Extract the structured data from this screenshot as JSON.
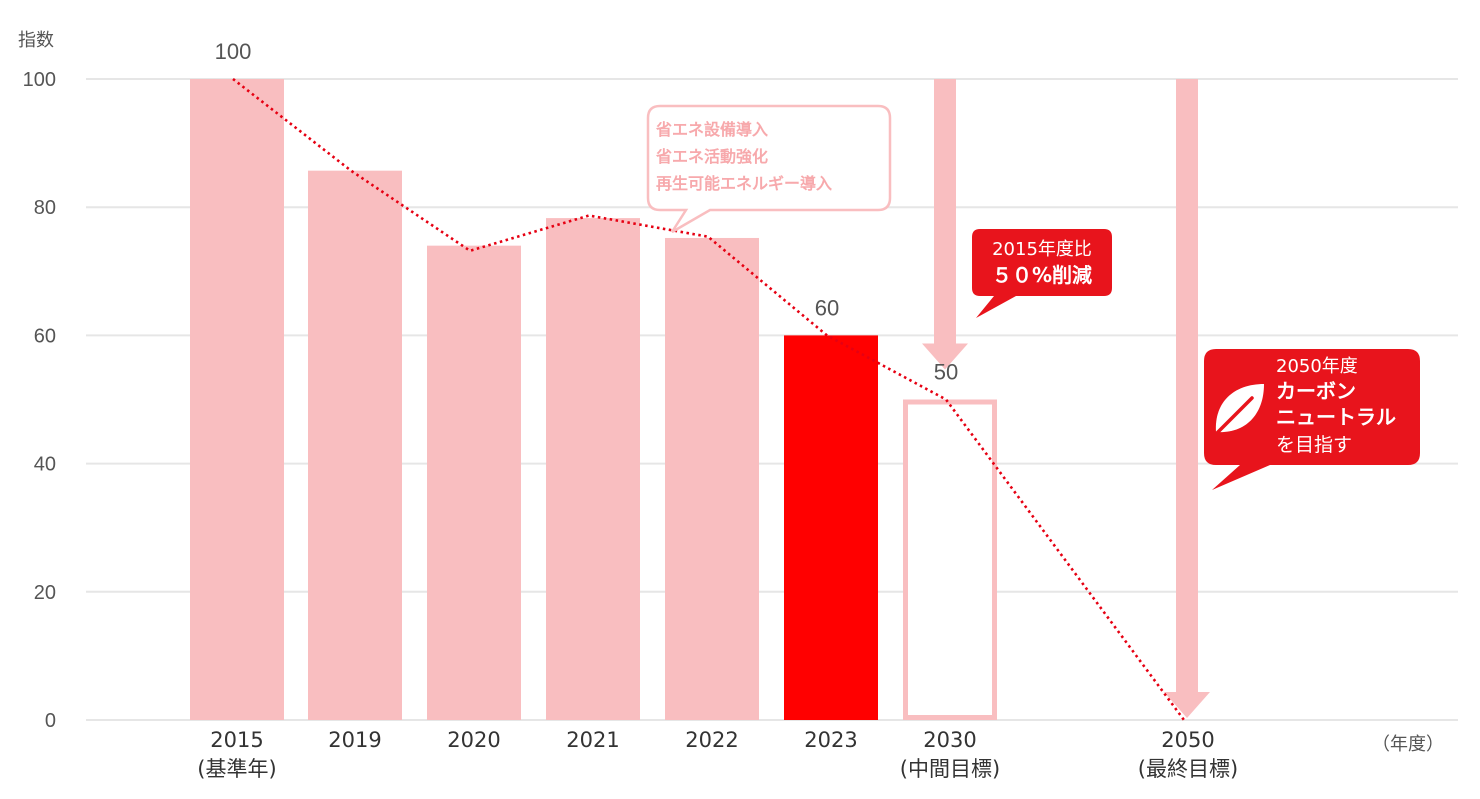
{
  "chart_data": {
    "type": "bar",
    "ylabel": "指数",
    "xlabel": "（年度）",
    "ylim": [
      0,
      100
    ],
    "yticks": [
      0,
      20,
      40,
      60,
      80,
      100
    ],
    "grid": true,
    "categories": [
      {
        "year": "2015",
        "sub": "(基準年)",
        "value": 100,
        "label": "100",
        "style": "light"
      },
      {
        "year": "2019",
        "sub": "",
        "value": 85.7,
        "label": "",
        "style": "light"
      },
      {
        "year": "2020",
        "sub": "",
        "value": 74,
        "label": "",
        "style": "light"
      },
      {
        "year": "2021",
        "sub": "",
        "value": 78.3,
        "label": "",
        "style": "light"
      },
      {
        "year": "2022",
        "sub": "",
        "value": 75.2,
        "label": "",
        "style": "light"
      },
      {
        "year": "2023",
        "sub": "",
        "value": 60,
        "label": "60",
        "style": "highlight"
      },
      {
        "year": "2030",
        "sub": "(中間目標)",
        "value": 50,
        "label": "50",
        "style": "outline"
      },
      {
        "year": "2050",
        "sub": "(最終目標)",
        "value": 0,
        "label": "",
        "style": "none"
      }
    ],
    "trend_line": [
      100,
      85.7,
      73.2,
      78.7,
      75.4,
      60,
      50,
      0
    ],
    "colors": {
      "light": "#f9bec0",
      "highlight": "#ff0000",
      "outline": "#f9bec0",
      "trend": "#e60012",
      "callout_red": "#e8141c",
      "grid": "#e6e6e6"
    },
    "annotations": {
      "measures": [
        "省エネ設備導入",
        "省エネ活動強化",
        "再生可能エネルギー導入"
      ],
      "target_2030": {
        "line1": "2015年度比",
        "line2": "５０%削減"
      },
      "target_2050": {
        "line1": "2050年度",
        "line2": "カーボン",
        "line3": "ニュートラル",
        "line4": "を目指す",
        "icon": "leaf-icon"
      }
    }
  }
}
